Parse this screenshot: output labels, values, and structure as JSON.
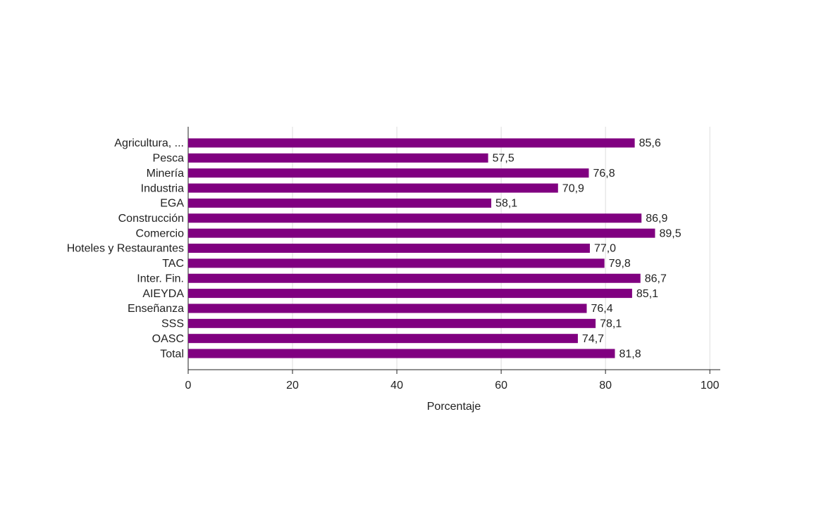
{
  "chart_data": {
    "type": "bar",
    "orientation": "horizontal",
    "categories": [
      "Agricultura, ...",
      "Pesca",
      "Minería",
      "Industria",
      "EGA",
      "Construcción",
      "Comercio",
      "Hoteles y Restaurantes",
      "TAC",
      "Inter. Fin.",
      "AIEYDA",
      "Enseñanza",
      "SSS",
      "OASC",
      "Total"
    ],
    "values": [
      85.6,
      57.5,
      76.8,
      70.9,
      58.1,
      86.9,
      89.5,
      77.0,
      79.8,
      86.7,
      85.1,
      76.4,
      78.1,
      74.7,
      81.8
    ],
    "value_labels": [
      "85,6",
      "57,5",
      "76,8",
      "70,9",
      "58,1",
      "86,9",
      "89,5",
      "77,0",
      "79,8",
      "86,7",
      "85,1",
      "76,4",
      "78,1",
      "74,7",
      "81,8"
    ],
    "color": "#800080",
    "xlabel": "Porcentaje",
    "xlim": [
      0,
      102
    ],
    "xticks": [
      0,
      20,
      40,
      60,
      80,
      100
    ],
    "grid": true
  }
}
